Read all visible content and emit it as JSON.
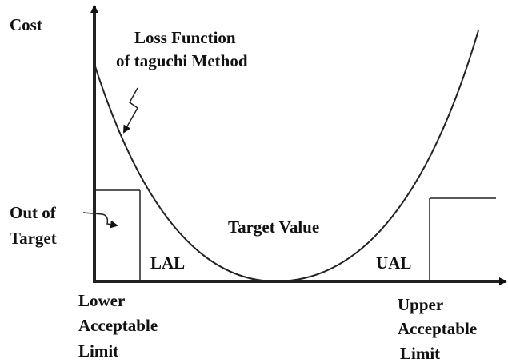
{
  "cost_label": "Cost",
  "curve_label": [
    "Loss Function",
    "of taguchi Method"
  ],
  "out_of_target": [
    "Out of",
    "Target"
  ],
  "target_value": "Target Value",
  "lal": "LAL",
  "ual": "UAL",
  "lower_limit": [
    "Lower",
    "Acceptable",
    "Limit"
  ],
  "upper_limit": [
    "Upper",
    "Acceptable",
    "Limit"
  ]
}
